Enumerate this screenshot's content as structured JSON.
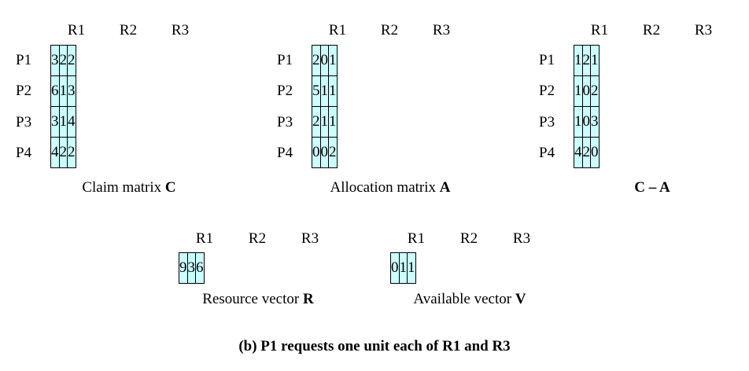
{
  "col_headers": [
    "R1",
    "R2",
    "R3"
  ],
  "row_labels": [
    "P1",
    "P2",
    "P3",
    "P4"
  ],
  "claim": {
    "caption_text": "Claim matrix ",
    "caption_bold": "C",
    "rows": [
      [
        "3",
        "2",
        "2"
      ],
      [
        "6",
        "1",
        "3"
      ],
      [
        "3",
        "1",
        "4"
      ],
      [
        "4",
        "2",
        "2"
      ]
    ]
  },
  "allocation": {
    "caption_text": "Allocation matrix ",
    "caption_bold": "A",
    "rows": [
      [
        "2",
        "0",
        "1"
      ],
      [
        "5",
        "1",
        "1"
      ],
      [
        "2",
        "1",
        "1"
      ],
      [
        "0",
        "0",
        "2"
      ]
    ]
  },
  "need": {
    "caption_text": "",
    "caption_bold": "C – A",
    "rows": [
      [
        "1",
        "2",
        "1"
      ],
      [
        "1",
        "0",
        "2"
      ],
      [
        "1",
        "0",
        "3"
      ],
      [
        "4",
        "2",
        "0"
      ]
    ]
  },
  "resource": {
    "caption_text": "Resource vector ",
    "caption_bold": "R",
    "values": [
      "9",
      "3",
      "6"
    ]
  },
  "available": {
    "caption_text": "Available vector ",
    "caption_bold": "V",
    "values": [
      "0",
      "1",
      "1"
    ]
  },
  "footer": "(b) P1 requests one unit each of R1 and R3"
}
